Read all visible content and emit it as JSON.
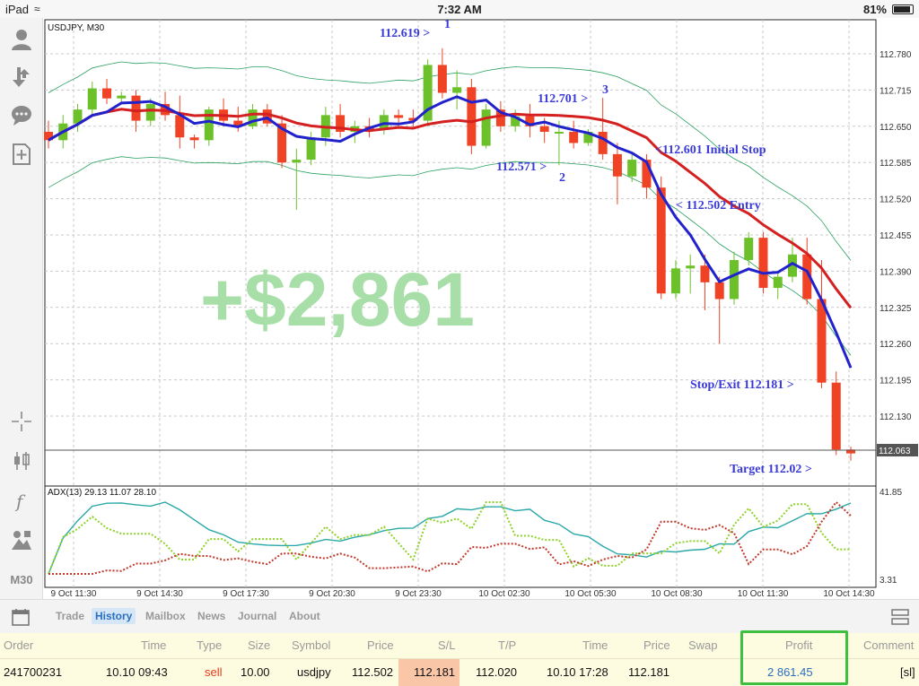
{
  "status_bar": {
    "device": "iPad",
    "time": "7:32 AM",
    "battery": "81%"
  },
  "chart": {
    "symbol_label": "USDJPY, M30",
    "indicator_label": "ADX(13) 29.13 11.07 28.10",
    "overlay_profit": "+$2,861",
    "current_price": "112.063",
    "price_ticks": [
      "112.780",
      "112.715",
      "112.650",
      "112.585",
      "112.520",
      "112.455",
      "112.390",
      "112.325",
      "112.260",
      "112.195",
      "112.130"
    ],
    "adx_ticks": [
      "41.85",
      "3.31"
    ],
    "time_ticks": [
      "9 Oct 11:30",
      "9 Oct 14:30",
      "9 Oct 17:30",
      "9 Oct 20:30",
      "9 Oct 23:30",
      "10 Oct 02:30",
      "10 Oct 05:30",
      "10 Oct 08:30",
      "10 Oct 11:30",
      "10 Oct 14:30"
    ],
    "annotations": {
      "a1": "112.619 >",
      "a1_num": "1",
      "a2": "112.571 >",
      "a2_num": "2",
      "a3": "112.701 >",
      "a3_num": "3",
      "stop": "<112.601 Initial Stop",
      "entry": "< 112.502 Entry",
      "exit": "Stop/Exit 112.181 >",
      "target": "Target 112.02 >"
    },
    "colors": {
      "bull": "#6cc12a",
      "bear": "#f04326",
      "ma_fast": "#2222cc",
      "ma_slow": "#d42020",
      "bands": "#2aa060",
      "profit_text": "#a8dfa8"
    }
  },
  "chart_data": {
    "type": "candlestick",
    "symbol": "USDJPY",
    "timeframe": "M30",
    "ylim": [
      112.04,
      112.84
    ],
    "candles": [
      {
        "o": 112.64,
        "h": 112.66,
        "l": 112.61,
        "c": 112.625
      },
      {
        "o": 112.625,
        "h": 112.67,
        "l": 112.61,
        "c": 112.655
      },
      {
        "o": 112.655,
        "h": 112.69,
        "l": 112.64,
        "c": 112.68
      },
      {
        "o": 112.68,
        "h": 112.73,
        "l": 112.67,
        "c": 112.718
      },
      {
        "o": 112.718,
        "h": 112.735,
        "l": 112.69,
        "c": 112.7
      },
      {
        "o": 112.7,
        "h": 112.712,
        "l": 112.69,
        "c": 112.705
      },
      {
        "o": 112.705,
        "h": 112.715,
        "l": 112.64,
        "c": 112.66
      },
      {
        "o": 112.66,
        "h": 112.7,
        "l": 112.65,
        "c": 112.69
      },
      {
        "o": 112.69,
        "h": 112.712,
        "l": 112.66,
        "c": 112.67
      },
      {
        "o": 112.67,
        "h": 112.705,
        "l": 112.61,
        "c": 112.63
      },
      {
        "o": 112.63,
        "h": 112.635,
        "l": 112.61,
        "c": 112.625
      },
      {
        "o": 112.625,
        "h": 112.685,
        "l": 112.615,
        "c": 112.68
      },
      {
        "o": 112.68,
        "h": 112.7,
        "l": 112.65,
        "c": 112.66
      },
      {
        "o": 112.66,
        "h": 112.685,
        "l": 112.64,
        "c": 112.65
      },
      {
        "o": 112.65,
        "h": 112.69,
        "l": 112.645,
        "c": 112.68
      },
      {
        "o": 112.68,
        "h": 112.69,
        "l": 112.65,
        "c": 112.655
      },
      {
        "o": 112.655,
        "h": 112.67,
        "l": 112.575,
        "c": 112.585
      },
      {
        "o": 112.585,
        "h": 112.61,
        "l": 112.5,
        "c": 112.59
      },
      {
        "o": 112.59,
        "h": 112.64,
        "l": 112.58,
        "c": 112.63
      },
      {
        "o": 112.63,
        "h": 112.685,
        "l": 112.615,
        "c": 112.67
      },
      {
        "o": 112.67,
        "h": 112.69,
        "l": 112.63,
        "c": 112.64
      },
      {
        "o": 112.64,
        "h": 112.66,
        "l": 112.62,
        "c": 112.65
      },
      {
        "o": 112.65,
        "h": 112.665,
        "l": 112.63,
        "c": 112.645
      },
      {
        "o": 112.645,
        "h": 112.68,
        "l": 112.635,
        "c": 112.67
      },
      {
        "o": 112.67,
        "h": 112.68,
        "l": 112.65,
        "c": 112.665
      },
      {
        "o": 112.665,
        "h": 112.68,
        "l": 112.65,
        "c": 112.66
      },
      {
        "o": 112.66,
        "h": 112.77,
        "l": 112.65,
        "c": 112.76
      },
      {
        "o": 112.76,
        "h": 112.79,
        "l": 112.7,
        "c": 112.71
      },
      {
        "o": 112.71,
        "h": 112.75,
        "l": 112.68,
        "c": 112.72
      },
      {
        "o": 112.72,
        "h": 112.735,
        "l": 112.6,
        "c": 112.615
      },
      {
        "o": 112.615,
        "h": 112.69,
        "l": 112.61,
        "c": 112.68
      },
      {
        "o": 112.68,
        "h": 112.695,
        "l": 112.64,
        "c": 112.65
      },
      {
        "o": 112.65,
        "h": 112.68,
        "l": 112.64,
        "c": 112.668
      },
      {
        "o": 112.668,
        "h": 112.69,
        "l": 112.63,
        "c": 112.65
      },
      {
        "o": 112.65,
        "h": 112.665,
        "l": 112.62,
        "c": 112.64
      },
      {
        "o": 112.64,
        "h": 112.66,
        "l": 112.58,
        "c": 112.64
      },
      {
        "o": 112.64,
        "h": 112.66,
        "l": 112.61,
        "c": 112.62
      },
      {
        "o": 112.62,
        "h": 112.645,
        "l": 112.615,
        "c": 112.64
      },
      {
        "o": 112.64,
        "h": 112.701,
        "l": 112.59,
        "c": 112.6
      },
      {
        "o": 112.6,
        "h": 112.62,
        "l": 112.51,
        "c": 112.56
      },
      {
        "o": 112.56,
        "h": 112.6,
        "l": 112.55,
        "c": 112.59
      },
      {
        "o": 112.59,
        "h": 112.6,
        "l": 112.52,
        "c": 112.54
      },
      {
        "o": 112.54,
        "h": 112.56,
        "l": 112.34,
        "c": 112.35
      },
      {
        "o": 112.35,
        "h": 112.41,
        "l": 112.34,
        "c": 112.395
      },
      {
        "o": 112.395,
        "h": 112.42,
        "l": 112.35,
        "c": 112.4
      },
      {
        "o": 112.4,
        "h": 112.42,
        "l": 112.32,
        "c": 112.37
      },
      {
        "o": 112.37,
        "h": 112.38,
        "l": 112.26,
        "c": 112.34
      },
      {
        "o": 112.34,
        "h": 112.425,
        "l": 112.33,
        "c": 112.41
      },
      {
        "o": 112.41,
        "h": 112.46,
        "l": 112.4,
        "c": 112.45
      },
      {
        "o": 112.45,
        "h": 112.46,
        "l": 112.35,
        "c": 112.36
      },
      {
        "o": 112.36,
        "h": 112.39,
        "l": 112.34,
        "c": 112.38
      },
      {
        "o": 112.38,
        "h": 112.45,
        "l": 112.37,
        "c": 112.42
      },
      {
        "o": 112.42,
        "h": 112.45,
        "l": 112.33,
        "c": 112.34
      },
      {
        "o": 112.34,
        "h": 112.41,
        "l": 112.18,
        "c": 112.19
      },
      {
        "o": 112.19,
        "h": 112.21,
        "l": 112.06,
        "c": 112.07
      },
      {
        "o": 112.07,
        "h": 112.075,
        "l": 112.05,
        "c": 112.063
      }
    ]
  },
  "tabs": {
    "trade": "Trade",
    "history": "History",
    "mailbox": "Mailbox",
    "news": "News",
    "journal": "Journal",
    "about": "About"
  },
  "table": {
    "headers": {
      "order": "Order",
      "time": "Time",
      "type": "Type",
      "size": "Size",
      "symbol": "Symbol",
      "price": "Price",
      "sl": "S/L",
      "tp": "T/P",
      "time2": "Time",
      "price2": "Price",
      "swap": "Swap",
      "profit": "Profit",
      "comment": "Comment"
    },
    "row": {
      "order": "241700231",
      "time": "10.10 09:43",
      "type": "sell",
      "size": "10.00",
      "symbol": "usdjpy",
      "price": "112.502",
      "sl": "112.181",
      "tp": "112.020",
      "time2": "10.10 17:28",
      "price2": "112.181",
      "swap": "",
      "profit": "2 861.45",
      "comment": "[sl]"
    }
  },
  "toolbar": {
    "timeframe": "M30"
  }
}
